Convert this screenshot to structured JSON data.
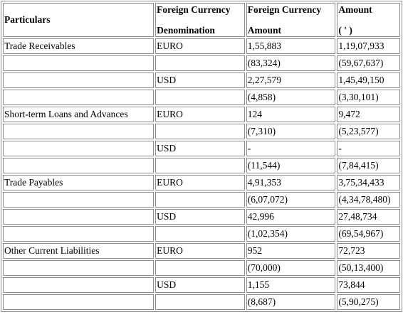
{
  "header": {
    "particulars": "Particulars",
    "denomination_line1": "Foreign Currency",
    "denomination_line2": "Denomination",
    "fc_amount_line1": "Foreign Currency",
    "fc_amount_line2": "Amount",
    "amount_line1": "Amount",
    "amount_line2": "( ' )"
  },
  "rows": [
    {
      "particulars": "Trade Receivables",
      "denomination": "EURO",
      "fc_amount": "1,55,883",
      "amount": "1,19,07,933"
    },
    {
      "particulars": "",
      "denomination": "",
      "fc_amount": "(83,324)",
      "amount": "(59,67,637)"
    },
    {
      "particulars": "",
      "denomination": "USD",
      "fc_amount": "2,27,579",
      "amount": "1,45,49,150"
    },
    {
      "particulars": "",
      "denomination": "",
      "fc_amount": "(4,858)",
      "amount": "(3,30,101)"
    },
    {
      "particulars": "Short-term Loans and Advances",
      "denomination": "EURO",
      "fc_amount": "124",
      "amount": "9,472"
    },
    {
      "particulars": "",
      "denomination": "",
      "fc_amount": "(7,310)",
      "amount": "(5,23,577)"
    },
    {
      "particulars": "",
      "denomination": "USD",
      "fc_amount": "-",
      "amount": "-"
    },
    {
      "particulars": "",
      "denomination": "",
      "fc_amount": "(11,544)",
      "amount": "(7,84,415)"
    },
    {
      "particulars": "Trade Payables",
      "denomination": "EURO",
      "fc_amount": "4,91,353",
      "amount": "3,75,34,433"
    },
    {
      "particulars": "",
      "denomination": "",
      "fc_amount": "(6,07,072)",
      "amount": "(4,34,78,480)"
    },
    {
      "particulars": "",
      "denomination": "USD",
      "fc_amount": "42,996",
      "amount": "27,48,734"
    },
    {
      "particulars": "",
      "denomination": "",
      "fc_amount": "(1,02,354)",
      "amount": "(69,54,967)"
    },
    {
      "particulars": "Other Current Liabilities",
      "denomination": "EURO",
      "fc_amount": "952",
      "amount": "72,723"
    },
    {
      "particulars": "",
      "denomination": "",
      "fc_amount": "(70,000)",
      "amount": "(50,13,400)"
    },
    {
      "particulars": "",
      "denomination": "USD",
      "fc_amount": "1,155",
      "amount": "73,844"
    },
    {
      "particulars": "",
      "denomination": "",
      "fc_amount": "(8,687)",
      "amount": "(5,90,275)"
    }
  ]
}
